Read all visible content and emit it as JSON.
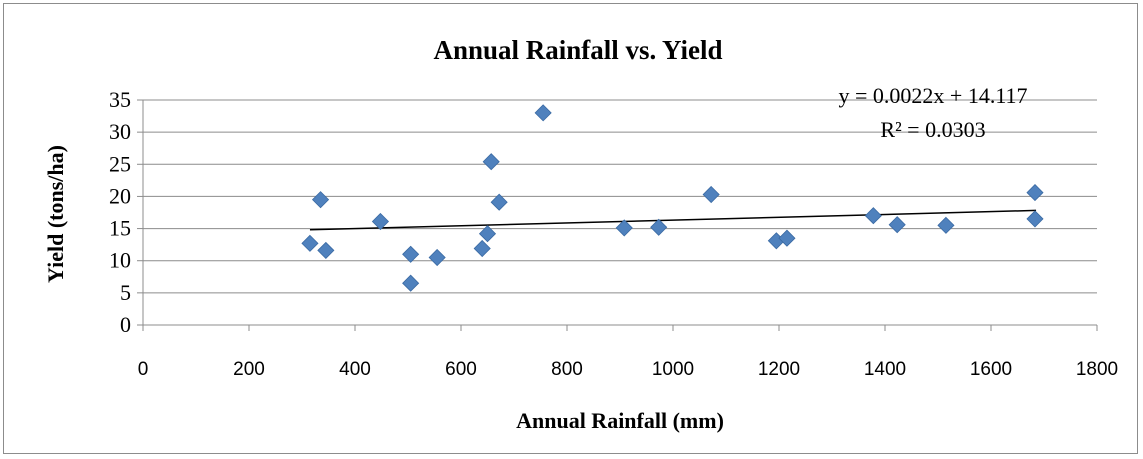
{
  "chart_data": {
    "type": "scatter",
    "title": "Annual Rainfall vs. Yield",
    "xlabel": "Annual Rainfall (mm)",
    "ylabel": "Yield (tons/ha)",
    "xlim": [
      0,
      1800
    ],
    "ylim": [
      0,
      35
    ],
    "xticks": [
      0,
      200,
      400,
      600,
      800,
      1000,
      1200,
      1400,
      1600,
      1800
    ],
    "yticks": [
      0,
      5,
      10,
      15,
      20,
      25,
      30,
      35
    ],
    "grid": "horizontal",
    "marker": "diamond",
    "marker_color": "#4f81bd",
    "trendline": {
      "equation": "y = 0.0022x + 14.117",
      "r_squared": "R² = 0.0303",
      "slope": 0.0022,
      "intercept": 14.117,
      "x_range": [
        315,
        1685
      ],
      "color": "#000000"
    },
    "points": [
      {
        "x": 315,
        "y": 12.7
      },
      {
        "x": 335,
        "y": 19.5
      },
      {
        "x": 345,
        "y": 11.6
      },
      {
        "x": 448,
        "y": 16.1
      },
      {
        "x": 505,
        "y": 11.0
      },
      {
        "x": 505,
        "y": 6.5
      },
      {
        "x": 555,
        "y": 10.5
      },
      {
        "x": 640,
        "y": 11.9
      },
      {
        "x": 650,
        "y": 14.2
      },
      {
        "x": 657,
        "y": 25.4
      },
      {
        "x": 672,
        "y": 19.1
      },
      {
        "x": 755,
        "y": 33.0
      },
      {
        "x": 908,
        "y": 15.1
      },
      {
        "x": 973,
        "y": 15.2
      },
      {
        "x": 1072,
        "y": 20.3
      },
      {
        "x": 1195,
        "y": 13.1
      },
      {
        "x": 1215,
        "y": 13.5
      },
      {
        "x": 1378,
        "y": 17.0
      },
      {
        "x": 1423,
        "y": 15.6
      },
      {
        "x": 1515,
        "y": 15.5
      },
      {
        "x": 1683,
        "y": 20.6
      },
      {
        "x": 1683,
        "y": 16.5
      }
    ]
  }
}
